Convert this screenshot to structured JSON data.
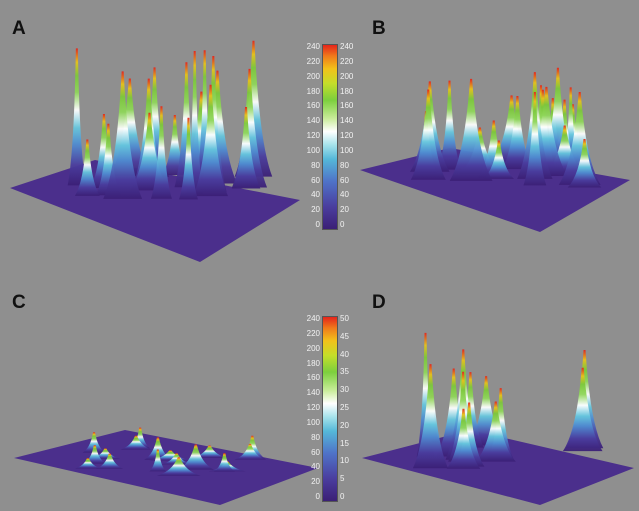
{
  "panels": [
    {
      "letter": "A",
      "peak_scale": 1.0,
      "seed": 11,
      "count": 22
    },
    {
      "letter": "B",
      "peak_scale": 0.72,
      "seed": 37,
      "count": 24
    },
    {
      "letter": "C",
      "peak_scale": 0.17,
      "seed": 53,
      "count": 18
    },
    {
      "letter": "D",
      "peak_scale": 0.92,
      "seed": 71,
      "count": 14
    }
  ],
  "colorbar_top": {
    "left_ticks": [
      "240",
      "220",
      "200",
      "180",
      "160",
      "140",
      "120",
      "100",
      "80",
      "60",
      "40",
      "20",
      "0"
    ],
    "right_ticks": [
      "240",
      "220",
      "200",
      "180",
      "160",
      "140",
      "120",
      "100",
      "80",
      "60",
      "40",
      "20",
      "0"
    ]
  },
  "colorbar_bottom": {
    "left_ticks": [
      "240",
      "220",
      "200",
      "180",
      "160",
      "140",
      "120",
      "100",
      "80",
      "60",
      "40",
      "20",
      "0"
    ],
    "right_ticks": [
      "50",
      "45",
      "40",
      "35",
      "30",
      "25",
      "20",
      "15",
      "10",
      "5",
      "0"
    ]
  },
  "colors": {
    "background": "#8f8f8f",
    "base_plane": "#4b2f8c",
    "low": "#3b1f76",
    "mid": "#ffffff",
    "high": "#e4241b"
  }
}
